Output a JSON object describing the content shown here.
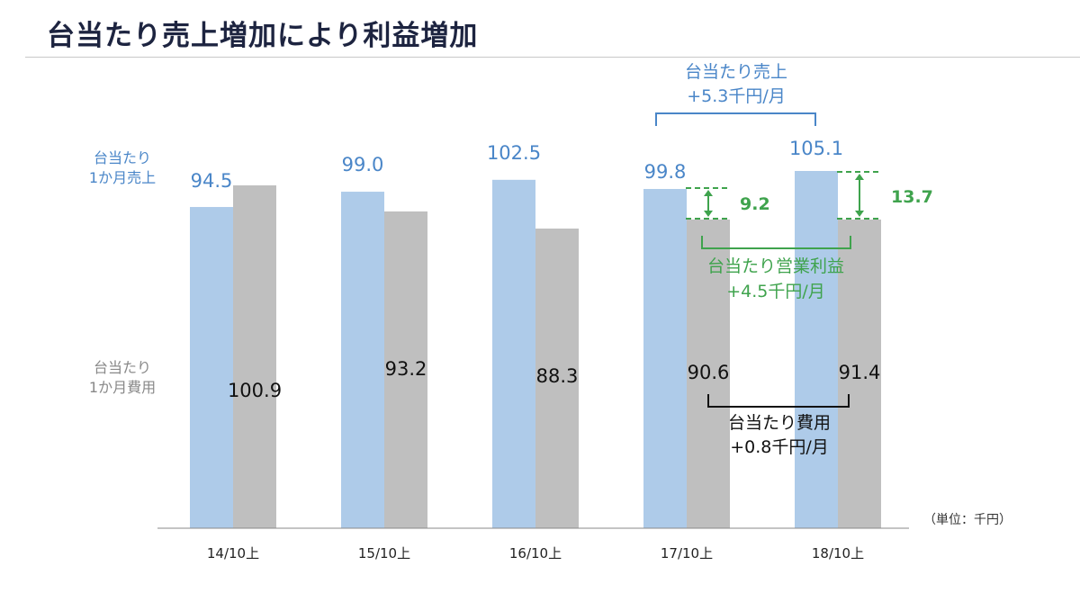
{
  "title": "台当たり売上増加により利益増加",
  "chart_data": {
    "type": "bar",
    "categories": [
      "14/10上",
      "15/10上",
      "16/10上",
      "17/10上",
      "18/10上"
    ],
    "series": [
      {
        "name": "台当たり1か月売上",
        "values": [
          94.5,
          99.0,
          102.5,
          99.8,
          105.1
        ],
        "labels": [
          "94.5",
          "99.0",
          "102.5",
          "99.8",
          "105.1"
        ],
        "color": "#aecbe9"
      },
      {
        "name": "台当たり1か月費用",
        "values": [
          100.9,
          93.2,
          88.3,
          90.6,
          91.4
        ],
        "labels": [
          "100.9",
          "93.2",
          "88.3",
          "90.6",
          "91.4"
        ],
        "color": "#bfbfbf"
      }
    ],
    "row_labels": {
      "sales": [
        "台当たり",
        "1か月売上"
      ],
      "cost": [
        "台当たり",
        "1か月費用"
      ]
    },
    "unit": "（単位：千円）",
    "profit_labels": [
      "9.2",
      "13.7"
    ],
    "annotations": {
      "sales_change": [
        "台当たり売上",
        "+5.3千円/月"
      ],
      "profit_change": [
        "台当たり営業利益",
        "+4.5千円/月"
      ],
      "cost_change": [
        "台当たり費用",
        "+0.8千円/月"
      ]
    },
    "colors": {
      "sales_text": "#4a86c8",
      "profit": "#3fa34d",
      "cost_text": "#111111"
    }
  }
}
